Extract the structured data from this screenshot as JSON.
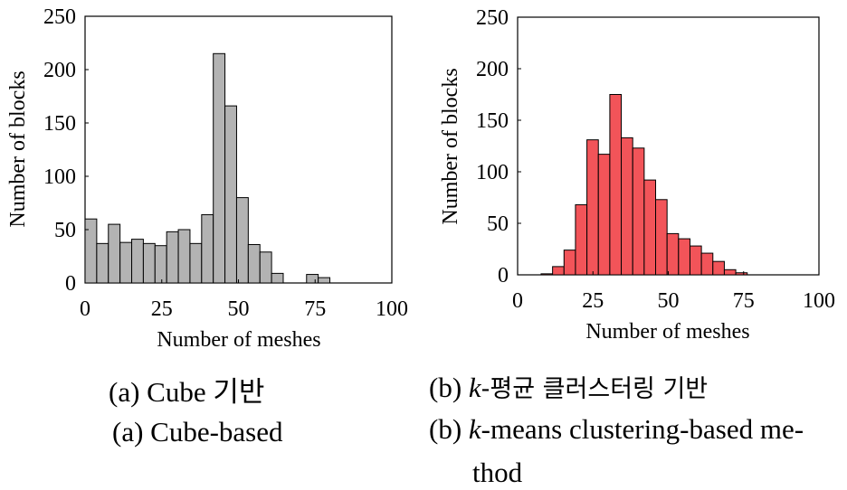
{
  "chart_data": [
    {
      "type": "bar",
      "xlabel": "Number of meshes",
      "ylabel": "Number of blocks",
      "xlim": [
        0,
        100
      ],
      "ylim": [
        0,
        250
      ],
      "xticks": [
        0,
        25,
        50,
        75,
        100
      ],
      "yticks": [
        0,
        50,
        100,
        150,
        200,
        250
      ],
      "bin_width": 3.8,
      "x": [
        1.9,
        5.7,
        9.5,
        13.3,
        17.1,
        20.9,
        24.7,
        28.5,
        32.3,
        36.1,
        39.9,
        43.7,
        47.5,
        51.3,
        55.1,
        58.9,
        62.7,
        66.5,
        70.3,
        74.1,
        77.9
      ],
      "values": [
        60,
        37,
        55,
        38,
        41,
        37,
        35,
        48,
        50,
        37,
        64,
        215,
        166,
        80,
        36,
        29,
        9,
        0,
        0,
        8,
        5
      ],
      "color": "#b3b3b3",
      "caption_ko": "(a) Cube 기반",
      "caption_en": "(a) Cube-based"
    },
    {
      "type": "bar",
      "xlabel": "Number of meshes",
      "ylabel": "Number of blocks",
      "xlim": [
        0,
        100
      ],
      "ylim": [
        0,
        250
      ],
      "xticks": [
        0,
        25,
        50,
        75,
        100
      ],
      "yticks": [
        0,
        50,
        100,
        150,
        200,
        250
      ],
      "bin_width": 3.8,
      "x": [
        9.7,
        13.5,
        17.3,
        21.1,
        24.9,
        28.7,
        32.5,
        36.3,
        40.1,
        43.9,
        47.7,
        51.5,
        55.3,
        59.1,
        62.9,
        66.7,
        70.5,
        74.3
      ],
      "values": [
        1,
        8,
        24,
        68,
        131,
        117,
        175,
        133,
        123,
        92,
        73,
        40,
        35,
        28,
        21,
        13,
        5,
        2
      ],
      "color": "#f25459",
      "caption_ko_prefix": "(b) ",
      "caption_ko_k": "k",
      "caption_ko_rest": "-평균 클러스터링 기반",
      "caption_en_prefix": "(b) ",
      "caption_en_k": "k",
      "caption_en_rest": "-means clustering-based me-",
      "caption_en_line2": "thod"
    }
  ]
}
